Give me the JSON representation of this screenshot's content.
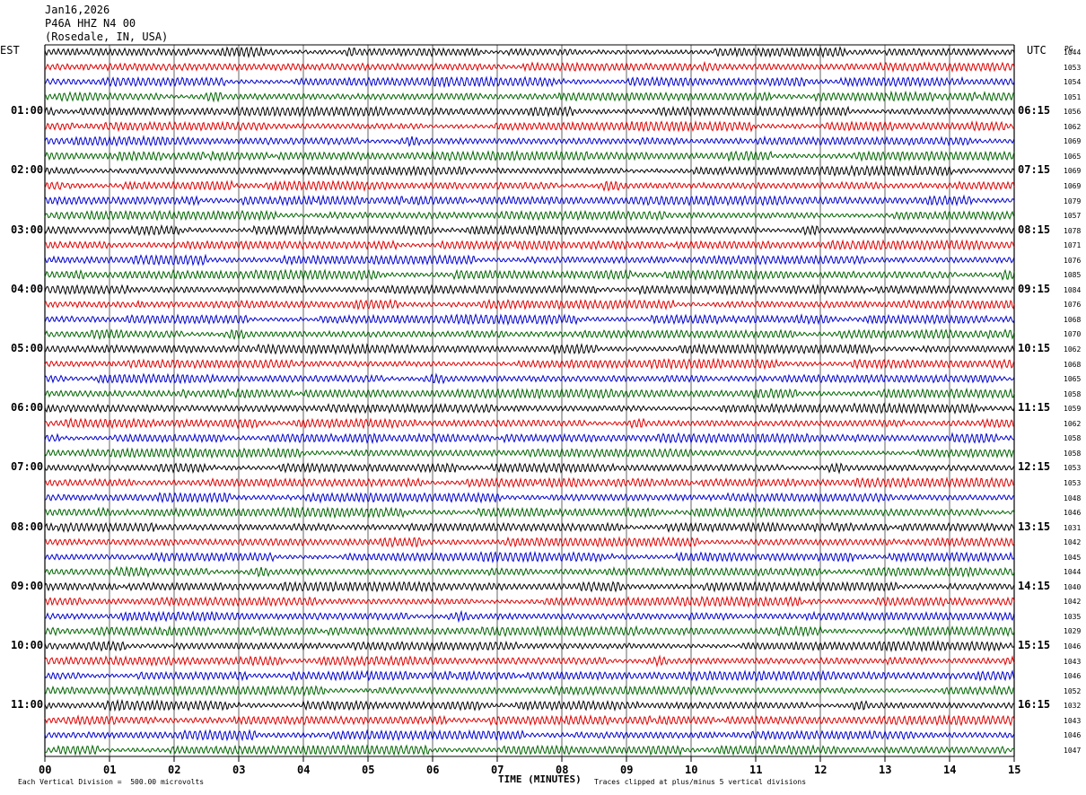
{
  "header": {
    "date": "Jan16,2026",
    "station": "P46A HHZ N4 00",
    "location": "(Rosedale, IN, USA)"
  },
  "left_title": "EST",
  "right_title": "UTC",
  "right_col_title": "PG",
  "footer": {
    "scale_note": "Each Vertical Division =  500.00 microvolts",
    "clip_note": "Traces clipped at plus/minus 5 vertical divisions"
  },
  "colors": {
    "black": "#000000",
    "red": "#dd0000",
    "blue": "#0000cc",
    "green": "#006400",
    "grid": "#000000"
  },
  "chart_data": {
    "type": "line",
    "xlabel": "TIME (MINUTES)",
    "x_ticks": [
      "00",
      "01",
      "02",
      "03",
      "04",
      "05",
      "06",
      "07",
      "08",
      "09",
      "10",
      "11",
      "12",
      "13",
      "14",
      "15"
    ],
    "xlim": [
      0,
      15
    ],
    "rows_per_hour": 4,
    "row_colors": [
      "black",
      "red",
      "blue",
      "green"
    ],
    "left_hour_labels": [
      "01:00",
      "02:00",
      "03:00",
      "04:00",
      "05:00",
      "06:00",
      "07:00",
      "08:00",
      "09:00",
      "10:00",
      "11:00"
    ],
    "right_hour_labels": [
      "06:15",
      "07:15",
      "08:15",
      "09:15",
      "10:15",
      "11:15",
      "12:15",
      "13:15",
      "14:15",
      "15:15",
      "16:15"
    ],
    "row_values": [
      "1044",
      "1053",
      "1054",
      "1051",
      "1056",
      "1062",
      "1069",
      "1065",
      "1069",
      "1069",
      "1079",
      "1057",
      "1078",
      "1071",
      "1076",
      "1085",
      "1084",
      "1076",
      "1068",
      "1070",
      "1062",
      "1068",
      "1065",
      "1058",
      "1059",
      "1062",
      "1058",
      "1058",
      "1053",
      "1053",
      "1048",
      "1046",
      "1031",
      "1042",
      "1045",
      "1044",
      "1040",
      "1042",
      "1035",
      "1029",
      "1046",
      "1043",
      "1046",
      "1052",
      "1032",
      "1043",
      "1046",
      "1047"
    ]
  }
}
